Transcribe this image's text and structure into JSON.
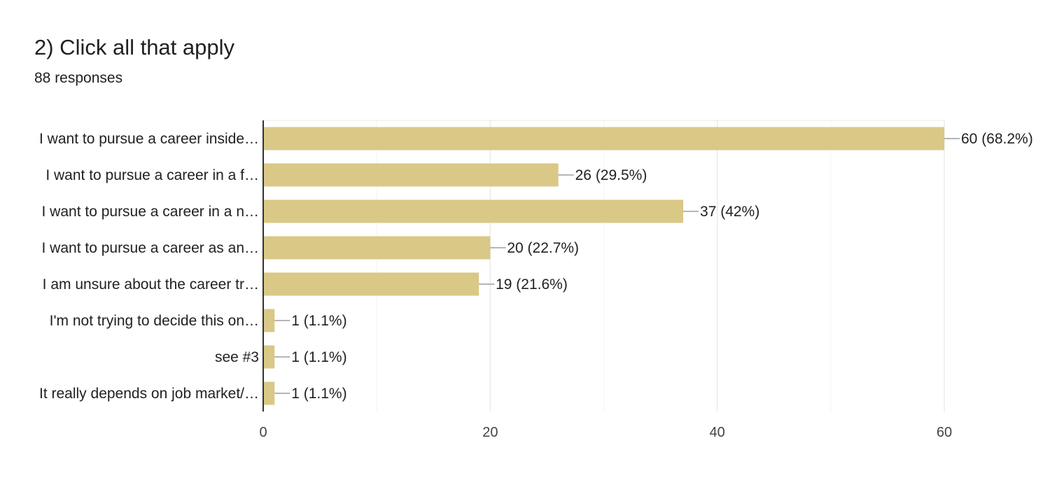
{
  "header": {
    "title": "2) Click all that apply",
    "responses": "88 responses"
  },
  "chart_data": {
    "type": "bar",
    "orientation": "horizontal",
    "categories": [
      "I want to pursue a career inside…",
      "I want to pursue a career in a f…",
      "I want to pursue a career in a n…",
      "I want to pursue a career as an…",
      "I am unsure about the career tr…",
      "I'm not trying to decide this on…",
      "see #3",
      "It really depends on job market/…"
    ],
    "values": [
      60,
      26,
      37,
      20,
      19,
      1,
      1,
      1
    ],
    "value_labels": [
      "60 (68.2%)",
      "26 (29.5%)",
      "37 (42%)",
      "20 (22.7%)",
      "19 (21.6%)",
      "1 (1.1%)",
      "1 (1.1%)",
      "1 (1.1%)"
    ],
    "xlim": [
      0,
      60
    ],
    "xticks": [
      0,
      20,
      40,
      60
    ],
    "minor_gridlines": [
      10,
      30,
      50
    ],
    "bar_color": "#d9c886",
    "leader_color": "#9e9e9e",
    "grid": true,
    "legend": "none",
    "title": "",
    "xlabel": "",
    "ylabel": ""
  }
}
